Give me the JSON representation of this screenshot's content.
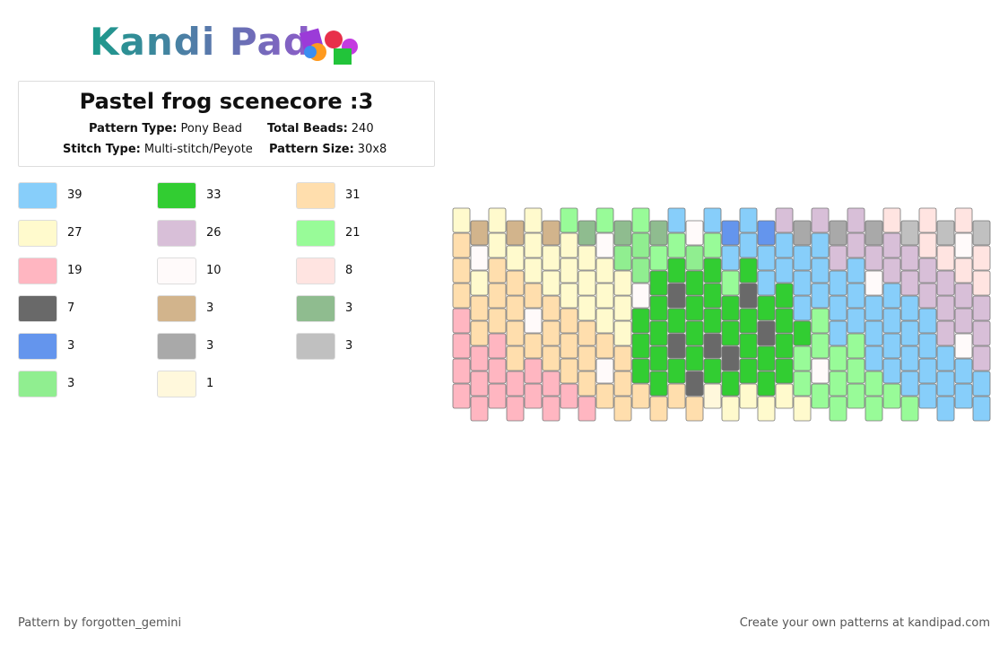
{
  "header": {
    "logo": "Kandi Pad"
  },
  "pattern": {
    "title": "Pastel frog scenecore :3",
    "info": [
      {
        "label": "Pattern Type:",
        "value": "Pony Bead"
      },
      {
        "label": "Total Beads:",
        "value": "240"
      },
      {
        "label": "Stitch Type:",
        "value": "Multi-stitch/Peyote"
      },
      {
        "label": "Pattern Size:",
        "value": "30x8"
      }
    ]
  },
  "legend": [
    {
      "color": "#87CEFA",
      "count": 39
    },
    {
      "color": "#32CD32",
      "count": 33
    },
    {
      "color": "#FFDEAD",
      "count": 31
    },
    {
      "color": "#FFFACD",
      "count": 27
    },
    {
      "color": "#D8BFD8",
      "count": 26
    },
    {
      "color": "#98FB98",
      "count": 21
    },
    {
      "color": "#FFB6C1",
      "count": 19
    },
    {
      "color": "#FFFAFA",
      "count": 10
    },
    {
      "color": "#FFE4E1",
      "count": 8
    },
    {
      "color": "#696969",
      "count": 7
    },
    {
      "color": "#D2B48C",
      "count": 3
    },
    {
      "color": "#8FBC8F",
      "count": 3
    },
    {
      "color": "#6495ED",
      "count": 3
    },
    {
      "color": "#A9A9A9",
      "count": 3
    },
    {
      "color": "#C0C0C0",
      "count": 3
    },
    {
      "color": "#90EE90",
      "count": 3
    },
    {
      "color": "#FFF8DC",
      "count": 1
    }
  ],
  "footer": {
    "author": "Pattern by forgotten_gemini",
    "promo": "Create your own patterns at kandipad.com"
  }
}
